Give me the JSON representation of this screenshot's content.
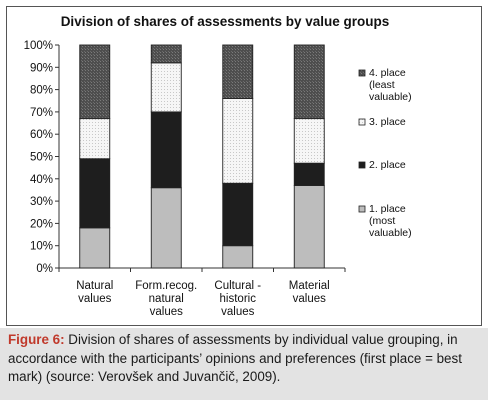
{
  "chart_data": {
    "type": "bar",
    "stacked": true,
    "title": "Division of shares of assessments by value groups",
    "categories": [
      "Natural values",
      "Form.recog. natural values",
      "Cultural - historic values",
      "Material values"
    ],
    "category_label_lines": [
      [
        "Natural",
        "values"
      ],
      [
        "Form.recog.",
        "natural",
        "values"
      ],
      [
        "Cultural -",
        "historic",
        "values"
      ],
      [
        "Material",
        "values"
      ]
    ],
    "yaxis": {
      "min": 0,
      "max": 100,
      "step": 10,
      "unit": "%"
    },
    "grid": false,
    "legend_position": "right",
    "series": [
      {
        "name": "1. place (most valuable)",
        "legend_lines": [
          "1. place",
          "(most",
          "valuable)"
        ],
        "color": "#bdbdbd",
        "pattern": "solid",
        "values": [
          18,
          36,
          10,
          37
        ]
      },
      {
        "name": "2. place",
        "legend_lines": [
          "2. place"
        ],
        "color": "#1e1e1e",
        "pattern": "solid",
        "values": [
          31,
          34,
          28,
          10
        ]
      },
      {
        "name": "3. place",
        "legend_lines": [
          "3. place"
        ],
        "color": "#f4f4f4",
        "pattern": "dotted",
        "values": [
          18,
          22,
          38,
          20
        ]
      },
      {
        "name": "4. place (least valuable)",
        "legend_lines": [
          "4. place",
          "(least",
          "valuable)"
        ],
        "color": "#555555",
        "pattern": "crosshatch",
        "values": [
          33,
          8,
          24,
          33
        ]
      }
    ]
  },
  "caption": {
    "label": "Figure 6:",
    "text": "Division of shares of assessments by individual value grouping, in accordance with the participants’ opinions and preferences (first place = best mark) (source: Verovšek and Juvančič, 2009)."
  }
}
